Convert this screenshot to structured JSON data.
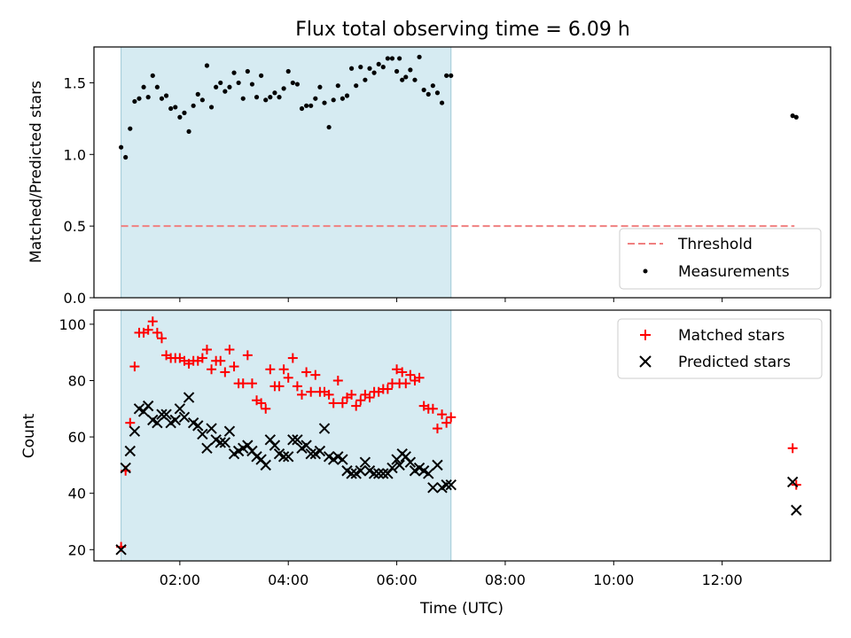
{
  "title": "Flux total observing time = 6.09 h",
  "xlabel": "Time (UTC)",
  "chart_data": [
    {
      "type": "scatter",
      "ylabel": "Matched/Predicted stars",
      "xlim": [
        "00:25",
        "14:00"
      ],
      "ylim": [
        0,
        1.75
      ],
      "yticks": [
        0.0,
        0.5,
        1.0,
        1.5
      ],
      "ytick_labels": [
        "0.0",
        "0.5",
        "1.0",
        "1.5"
      ],
      "xticks": [
        "02:00",
        "04:00",
        "06:00",
        "08:00",
        "10:00",
        "12:00"
      ],
      "grid": false,
      "legend_position": "lower-right",
      "shaded_interval": {
        "start": "00:55",
        "end": "07:00",
        "color": "#add8e6"
      },
      "threshold": {
        "name": "Threshold",
        "value": 0.5,
        "x_range": [
          "00:55",
          "13:20"
        ],
        "color": "#f08080",
        "style": "dashed"
      },
      "series": [
        {
          "name": "Measurements",
          "color": "#000000",
          "marker": "dot",
          "points": [
            [
              "00:55",
              1.05
            ],
            [
              "01:00",
              0.98
            ],
            [
              "01:05",
              1.18
            ],
            [
              "01:10",
              1.37
            ],
            [
              "01:15",
              1.39
            ],
            [
              "01:20",
              1.47
            ],
            [
              "01:25",
              1.4
            ],
            [
              "01:30",
              1.55
            ],
            [
              "01:35",
              1.47
            ],
            [
              "01:40",
              1.39
            ],
            [
              "01:45",
              1.41
            ],
            [
              "01:50",
              1.32
            ],
            [
              "01:55",
              1.33
            ],
            [
              "02:00",
              1.26
            ],
            [
              "02:05",
              1.29
            ],
            [
              "02:10",
              1.16
            ],
            [
              "02:15",
              1.34
            ],
            [
              "02:20",
              1.42
            ],
            [
              "02:25",
              1.38
            ],
            [
              "02:30",
              1.62
            ],
            [
              "02:35",
              1.33
            ],
            [
              "02:40",
              1.47
            ],
            [
              "02:45",
              1.5
            ],
            [
              "02:50",
              1.44
            ],
            [
              "02:55",
              1.47
            ],
            [
              "03:00",
              1.57
            ],
            [
              "03:05",
              1.5
            ],
            [
              "03:10",
              1.39
            ],
            [
              "03:15",
              1.58
            ],
            [
              "03:20",
              1.49
            ],
            [
              "03:25",
              1.4
            ],
            [
              "03:30",
              1.55
            ],
            [
              "03:35",
              1.38
            ],
            [
              "03:40",
              1.4
            ],
            [
              "03:45",
              1.43
            ],
            [
              "03:50",
              1.4
            ],
            [
              "03:55",
              1.46
            ],
            [
              "04:00",
              1.58
            ],
            [
              "04:05",
              1.5
            ],
            [
              "04:10",
              1.49
            ],
            [
              "04:15",
              1.32
            ],
            [
              "04:20",
              1.34
            ],
            [
              "04:25",
              1.34
            ],
            [
              "04:30",
              1.39
            ],
            [
              "04:35",
              1.47
            ],
            [
              "04:40",
              1.36
            ],
            [
              "04:45",
              1.19
            ],
            [
              "04:50",
              1.38
            ],
            [
              "04:55",
              1.48
            ],
            [
              "05:00",
              1.39
            ],
            [
              "05:05",
              1.41
            ],
            [
              "05:10",
              1.6
            ],
            [
              "05:15",
              1.48
            ],
            [
              "05:20",
              1.61
            ],
            [
              "05:25",
              1.52
            ],
            [
              "05:30",
              1.6
            ],
            [
              "05:35",
              1.57
            ],
            [
              "05:40",
              1.63
            ],
            [
              "05:45",
              1.61
            ],
            [
              "05:50",
              1.67
            ],
            [
              "05:55",
              1.67
            ],
            [
              "06:00",
              1.58
            ],
            [
              "06:03",
              1.67
            ],
            [
              "06:06",
              1.52
            ],
            [
              "06:10",
              1.54
            ],
            [
              "06:15",
              1.59
            ],
            [
              "06:20",
              1.52
            ],
            [
              "06:25",
              1.68
            ],
            [
              "06:30",
              1.45
            ],
            [
              "06:35",
              1.42
            ],
            [
              "06:40",
              1.48
            ],
            [
              "06:45",
              1.43
            ],
            [
              "06:50",
              1.36
            ],
            [
              "06:55",
              1.55
            ],
            [
              "07:00",
              1.55
            ],
            [
              "13:18",
              1.27
            ],
            [
              "13:22",
              1.26
            ]
          ]
        }
      ]
    },
    {
      "type": "scatter",
      "ylabel": "Count",
      "xlim": [
        "00:25",
        "14:00"
      ],
      "ylim": [
        16,
        105
      ],
      "yticks": [
        20,
        40,
        60,
        80,
        100
      ],
      "ytick_labels": [
        "20",
        "40",
        "60",
        "80",
        "100"
      ],
      "xticks": [
        "02:00",
        "04:00",
        "06:00",
        "08:00",
        "10:00",
        "12:00"
      ],
      "xtick_labels": [
        "02:00",
        "04:00",
        "06:00",
        "08:00",
        "10:00",
        "12:00"
      ],
      "grid": false,
      "legend_position": "upper-right",
      "shaded_interval": {
        "start": "00:55",
        "end": "07:00",
        "color": "#add8e6"
      },
      "series": [
        {
          "name": "Matched stars",
          "color": "#ff0000",
          "marker": "plus",
          "points": [
            [
              "00:55",
              21
            ],
            [
              "01:00",
              48
            ],
            [
              "01:05",
              65
            ],
            [
              "01:10",
              85
            ],
            [
              "01:15",
              97
            ],
            [
              "01:20",
              97
            ],
            [
              "01:25",
              98
            ],
            [
              "01:30",
              101
            ],
            [
              "01:35",
              97
            ],
            [
              "01:40",
              95
            ],
            [
              "01:45",
              89
            ],
            [
              "01:50",
              88
            ],
            [
              "01:55",
              88
            ],
            [
              "02:00",
              88
            ],
            [
              "02:05",
              87
            ],
            [
              "02:10",
              86
            ],
            [
              "02:15",
              87
            ],
            [
              "02:20",
              87
            ],
            [
              "02:25",
              88
            ],
            [
              "02:30",
              91
            ],
            [
              "02:35",
              84
            ],
            [
              "02:40",
              87
            ],
            [
              "02:45",
              87
            ],
            [
              "02:50",
              83
            ],
            [
              "02:55",
              91
            ],
            [
              "03:00",
              85
            ],
            [
              "03:05",
              79
            ],
            [
              "03:10",
              79
            ],
            [
              "03:15",
              89
            ],
            [
              "03:20",
              79
            ],
            [
              "03:25",
              73
            ],
            [
              "03:30",
              72
            ],
            [
              "03:35",
              70
            ],
            [
              "03:40",
              84
            ],
            [
              "03:45",
              78
            ],
            [
              "03:50",
              78
            ],
            [
              "03:55",
              84
            ],
            [
              "04:00",
              81
            ],
            [
              "04:05",
              88
            ],
            [
              "04:10",
              78
            ],
            [
              "04:15",
              75
            ],
            [
              "04:20",
              83
            ],
            [
              "04:25",
              76
            ],
            [
              "04:30",
              82
            ],
            [
              "04:35",
              76
            ],
            [
              "04:40",
              76
            ],
            [
              "04:45",
              75
            ],
            [
              "04:50",
              72
            ],
            [
              "04:55",
              80
            ],
            [
              "05:00",
              72
            ],
            [
              "05:05",
              74
            ],
            [
              "05:10",
              75
            ],
            [
              "05:15",
              71
            ],
            [
              "05:20",
              73
            ],
            [
              "05:25",
              75
            ],
            [
              "05:30",
              74
            ],
            [
              "05:35",
              76
            ],
            [
              "05:40",
              76
            ],
            [
              "05:45",
              77
            ],
            [
              "05:50",
              77
            ],
            [
              "05:55",
              79
            ],
            [
              "06:00",
              84
            ],
            [
              "06:03",
              79
            ],
            [
              "06:06",
              83
            ],
            [
              "06:10",
              79
            ],
            [
              "06:15",
              82
            ],
            [
              "06:20",
              80
            ],
            [
              "06:25",
              81
            ],
            [
              "06:30",
              71
            ],
            [
              "06:35",
              70
            ],
            [
              "06:40",
              70
            ],
            [
              "06:45",
              63
            ],
            [
              "06:50",
              68
            ],
            [
              "06:55",
              65
            ],
            [
              "07:00",
              67
            ],
            [
              "13:18",
              56
            ],
            [
              "13:22",
              43
            ]
          ]
        },
        {
          "name": "Predicted stars",
          "color": "#000000",
          "marker": "x",
          "points": [
            [
              "00:55",
              20
            ],
            [
              "01:00",
              49
            ],
            [
              "01:05",
              55
            ],
            [
              "01:10",
              62
            ],
            [
              "01:15",
              70
            ],
            [
              "01:20",
              69
            ],
            [
              "01:25",
              71
            ],
            [
              "01:30",
              66
            ],
            [
              "01:35",
              65
            ],
            [
              "01:40",
              68
            ],
            [
              "01:45",
              68
            ],
            [
              "01:50",
              65
            ],
            [
              "01:55",
              66
            ],
            [
              "02:00",
              70
            ],
            [
              "02:05",
              67
            ],
            [
              "02:10",
              74
            ],
            [
              "02:15",
              65
            ],
            [
              "02:20",
              64
            ],
            [
              "02:25",
              61
            ],
            [
              "02:30",
              56
            ],
            [
              "02:35",
              63
            ],
            [
              "02:40",
              59
            ],
            [
              "02:45",
              58
            ],
            [
              "02:50",
              58
            ],
            [
              "02:55",
              62
            ],
            [
              "03:00",
              54
            ],
            [
              "03:05",
              55
            ],
            [
              "03:10",
              56
            ],
            [
              "03:15",
              57
            ],
            [
              "03:20",
              55
            ],
            [
              "03:25",
              53
            ],
            [
              "03:30",
              52
            ],
            [
              "03:35",
              50
            ],
            [
              "03:40",
              59
            ],
            [
              "03:45",
              57
            ],
            [
              "03:50",
              54
            ],
            [
              "03:55",
              53
            ],
            [
              "04:00",
              53
            ],
            [
              "04:05",
              59
            ],
            [
              "04:10",
              59
            ],
            [
              "04:15",
              56
            ],
            [
              "04:20",
              57
            ],
            [
              "04:25",
              54
            ],
            [
              "04:30",
              54
            ],
            [
              "04:35",
              55
            ],
            [
              "04:40",
              63
            ],
            [
              "04:45",
              53
            ],
            [
              "04:50",
              52
            ],
            [
              "04:55",
              53
            ],
            [
              "05:00",
              52
            ],
            [
              "05:05",
              48
            ],
            [
              "05:10",
              47
            ],
            [
              "05:15",
              47
            ],
            [
              "05:20",
              48
            ],
            [
              "05:25",
              51
            ],
            [
              "05:30",
              48
            ],
            [
              "05:35",
              47
            ],
            [
              "05:40",
              47
            ],
            [
              "05:45",
              47
            ],
            [
              "05:50",
              47
            ],
            [
              "05:55",
              49
            ],
            [
              "06:00",
              52
            ],
            [
              "06:03",
              50
            ],
            [
              "06:06",
              54
            ],
            [
              "06:10",
              53
            ],
            [
              "06:15",
              51
            ],
            [
              "06:20",
              48
            ],
            [
              "06:25",
              49
            ],
            [
              "06:30",
              48
            ],
            [
              "06:35",
              47
            ],
            [
              "06:40",
              42
            ],
            [
              "06:45",
              50
            ],
            [
              "06:50",
              42
            ],
            [
              "06:55",
              43
            ],
            [
              "07:00",
              43
            ],
            [
              "13:18",
              44
            ],
            [
              "13:22",
              34
            ]
          ]
        }
      ]
    }
  ]
}
